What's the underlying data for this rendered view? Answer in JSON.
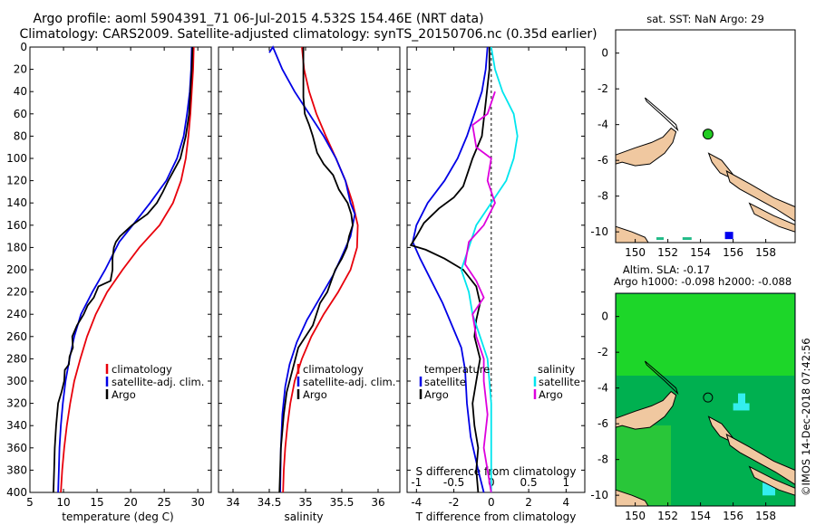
{
  "title": {
    "line1": "Argo profile: aoml 5904391_71 06-Jul-2015 4.532S 154.46E (NRT data)",
    "line2": "Climatology: CARS2009. Satellite-adjusted climatology: synTS_20150706.nc (0.35d earlier)"
  },
  "credit": "©IMOS 14-Dec-2018 07:42:56",
  "colors": {
    "climatology": "#e8000b",
    "satellite": "#0000e6",
    "argo": "#000000",
    "s_satellite": "#00e5ee",
    "s_argo": "#dd00dd",
    "land": "#f0c8a0",
    "sla_bg": "#00b050",
    "sla_high": "#22dd22"
  },
  "chart_data": [
    {
      "type": "line",
      "name": "temperature-panel",
      "xlabel": "temperature (deg C)",
      "ylabel": "",
      "xlim": [
        5,
        32
      ],
      "ylim": [
        400,
        0
      ],
      "xticks": [
        "5",
        "10",
        "15",
        "20",
        "25",
        "30"
      ],
      "yticks": [
        "0",
        "20",
        "40",
        "60",
        "80",
        "100",
        "120",
        "140",
        "160",
        "180",
        "200",
        "220",
        "240",
        "260",
        "280",
        "300",
        "320",
        "340",
        "360",
        "380",
        "400"
      ],
      "legend": [
        "climatology",
        "satellite-adj. clim.",
        "Argo"
      ],
      "series": [
        {
          "name": "climatology",
          "key": "climatology",
          "points": [
            [
              29.4,
              0
            ],
            [
              29.3,
              20
            ],
            [
              29.1,
              40
            ],
            [
              28.9,
              60
            ],
            [
              28.6,
              80
            ],
            [
              28.2,
              100
            ],
            [
              27.5,
              120
            ],
            [
              26.3,
              140
            ],
            [
              24.3,
              160
            ],
            [
              21.3,
              180
            ],
            [
              18.8,
              200
            ],
            [
              16.5,
              220
            ],
            [
              14.8,
              240
            ],
            [
              13.5,
              260
            ],
            [
              12.5,
              280
            ],
            [
              11.6,
              300
            ],
            [
              11.0,
              320
            ],
            [
              10.5,
              340
            ],
            [
              10.1,
              360
            ],
            [
              9.8,
              380
            ],
            [
              9.6,
              400
            ]
          ]
        },
        {
          "name": "satellite-adj. clim.",
          "key": "satellite",
          "points": [
            [
              29.1,
              0
            ],
            [
              29.0,
              20
            ],
            [
              28.8,
              40
            ],
            [
              28.4,
              60
            ],
            [
              27.9,
              80
            ],
            [
              26.9,
              100
            ],
            [
              25.3,
              120
            ],
            [
              22.9,
              140
            ],
            [
              20.3,
              160
            ],
            [
              18.3,
              175
            ],
            [
              16.2,
              200
            ],
            [
              14.3,
              220
            ],
            [
              12.6,
              240
            ],
            [
              11.6,
              260
            ],
            [
              10.9,
              280
            ],
            [
              10.3,
              300
            ],
            [
              9.9,
              320
            ],
            [
              9.6,
              340
            ],
            [
              9.4,
              360
            ],
            [
              9.3,
              380
            ],
            [
              9.2,
              400
            ]
          ]
        },
        {
          "name": "Argo",
          "key": "argo",
          "points": [
            [
              29.2,
              0
            ],
            [
              29.1,
              20
            ],
            [
              28.9,
              40
            ],
            [
              28.7,
              60
            ],
            [
              28.2,
              80
            ],
            [
              27.4,
              100
            ],
            [
              26.5,
              110
            ],
            [
              25.6,
              120
            ],
            [
              24.8,
              130
            ],
            [
              23.9,
              140
            ],
            [
              22.5,
              150
            ],
            [
              20.2,
              160
            ],
            [
              18.4,
              170
            ],
            [
              17.8,
              175
            ],
            [
              17.5,
              180
            ],
            [
              17.3,
              190
            ],
            [
              17.3,
              200
            ],
            [
              17.0,
              210
            ],
            [
              15.2,
              215
            ],
            [
              14.5,
              225
            ],
            [
              13.6,
              232
            ],
            [
              13.0,
              240
            ],
            [
              12.0,
              250
            ],
            [
              11.3,
              260
            ],
            [
              11.4,
              270
            ],
            [
              10.9,
              278
            ],
            [
              10.8,
              285
            ],
            [
              10.2,
              290
            ],
            [
              10.1,
              300
            ],
            [
              9.7,
              310
            ],
            [
              9.2,
              320
            ],
            [
              8.9,
              340
            ],
            [
              8.7,
              360
            ],
            [
              8.6,
              380
            ],
            [
              8.5,
              400
            ]
          ]
        }
      ]
    },
    {
      "type": "line",
      "name": "salinity-panel",
      "xlabel": "salinity",
      "xlim": [
        33.8,
        36.3
      ],
      "ylim": [
        400,
        0
      ],
      "xticks": [
        "34",
        "34.5",
        "35",
        "35.5",
        "36"
      ],
      "legend": [
        "climatology",
        "satellite-adj. clim.",
        "Argo"
      ],
      "series": [
        {
          "name": "climatology",
          "key": "climatology",
          "points": [
            [
              34.95,
              0
            ],
            [
              34.98,
              20
            ],
            [
              35.05,
              40
            ],
            [
              35.15,
              60
            ],
            [
              35.28,
              80
            ],
            [
              35.42,
              100
            ],
            [
              35.55,
              120
            ],
            [
              35.65,
              140
            ],
            [
              35.72,
              160
            ],
            [
              35.71,
              180
            ],
            [
              35.62,
              200
            ],
            [
              35.45,
              220
            ],
            [
              35.25,
              240
            ],
            [
              35.08,
              260
            ],
            [
              34.95,
              280
            ],
            [
              34.85,
              300
            ],
            [
              34.79,
              320
            ],
            [
              34.75,
              340
            ],
            [
              34.72,
              360
            ],
            [
              34.7,
              380
            ],
            [
              34.69,
              400
            ]
          ]
        },
        {
          "name": "satellite-adj. clim.",
          "key": "satellite",
          "points": [
            [
              34.5,
              5
            ],
            [
              34.55,
              0
            ],
            [
              34.68,
              20
            ],
            [
              34.85,
              40
            ],
            [
              35.05,
              60
            ],
            [
              35.25,
              80
            ],
            [
              35.42,
              100
            ],
            [
              35.55,
              120
            ],
            [
              35.62,
              140
            ],
            [
              35.68,
              150
            ],
            [
              35.62,
              170
            ],
            [
              35.52,
              185
            ],
            [
              35.38,
              205
            ],
            [
              35.2,
              225
            ],
            [
              35.02,
              245
            ],
            [
              34.88,
              265
            ],
            [
              34.78,
              285
            ],
            [
              34.72,
              305
            ],
            [
              34.68,
              330
            ],
            [
              34.66,
              360
            ],
            [
              34.65,
              400
            ]
          ]
        },
        {
          "name": "Argo",
          "key": "argo",
          "points": [
            [
              34.97,
              0
            ],
            [
              34.97,
              20
            ],
            [
              34.97,
              45
            ],
            [
              34.99,
              60
            ],
            [
              35.05,
              70
            ],
            [
              35.1,
              80
            ],
            [
              35.16,
              95
            ],
            [
              35.25,
              105
            ],
            [
              35.38,
              115
            ],
            [
              35.46,
              128
            ],
            [
              35.58,
              140
            ],
            [
              35.63,
              150
            ],
            [
              35.65,
              160
            ],
            [
              35.6,
              170
            ],
            [
              35.57,
              180
            ],
            [
              35.5,
              190
            ],
            [
              35.41,
              200
            ],
            [
              35.3,
              220
            ],
            [
              35.2,
              230
            ],
            [
              35.1,
              250
            ],
            [
              34.9,
              270
            ],
            [
              34.82,
              290
            ],
            [
              34.74,
              310
            ],
            [
              34.7,
              330
            ],
            [
              34.66,
              360
            ],
            [
              34.64,
              400
            ]
          ]
        }
      ]
    },
    {
      "type": "line",
      "name": "difference-panel",
      "xlabel": "T difference from climatology",
      "xlabel_top": "S difference from climatology",
      "xlim": [
        -4.5,
        5
      ],
      "ylim": [
        400,
        0
      ],
      "xticks_T": [
        "-4",
        "-2",
        "0",
        "2",
        "4"
      ],
      "xticks_S": [
        "-1",
        "-0.5",
        "0",
        "0.5",
        "1"
      ],
      "legend_T": {
        "header": "temperature",
        "items": [
          "satellite",
          "Argo"
        ]
      },
      "legend_S": {
        "header": "salinity",
        "items": [
          "satellite",
          "Argo"
        ]
      },
      "series": [
        {
          "name": "T satellite",
          "key": "satellite",
          "points": [
            [
              -0.2,
              0
            ],
            [
              -0.3,
              20
            ],
            [
              -0.5,
              40
            ],
            [
              -0.9,
              60
            ],
            [
              -1.3,
              80
            ],
            [
              -1.8,
              100
            ],
            [
              -2.5,
              120
            ],
            [
              -3.4,
              140
            ],
            [
              -4.0,
              160
            ],
            [
              -4.2,
              175
            ],
            [
              -3.8,
              190
            ],
            [
              -3.2,
              210
            ],
            [
              -2.6,
              230
            ],
            [
              -2.1,
              250
            ],
            [
              -1.6,
              270
            ],
            [
              -1.4,
              290
            ],
            [
              -1.3,
              320
            ],
            [
              -1.1,
              350
            ],
            [
              -0.7,
              380
            ],
            [
              -0.4,
              400
            ]
          ]
        },
        {
          "name": "T Argo",
          "key": "argo",
          "points": [
            [
              -0.1,
              0
            ],
            [
              -0.1,
              20
            ],
            [
              -0.3,
              50
            ],
            [
              -0.5,
              80
            ],
            [
              -1.0,
              100
            ],
            [
              -1.2,
              110
            ],
            [
              -1.5,
              125
            ],
            [
              -2.0,
              135
            ],
            [
              -2.8,
              145
            ],
            [
              -3.6,
              158
            ],
            [
              -4.0,
              170
            ],
            [
              -4.3,
              178
            ],
            [
              -3.5,
              182
            ],
            [
              -2.5,
              190
            ],
            [
              -1.5,
              200
            ],
            [
              -0.8,
              215
            ],
            [
              -0.6,
              230
            ],
            [
              -0.8,
              245
            ],
            [
              -0.9,
              260
            ],
            [
              -0.6,
              280
            ],
            [
              -0.8,
              300
            ],
            [
              -1.0,
              320
            ],
            [
              -0.9,
              340
            ],
            [
              -0.7,
              360
            ],
            [
              -0.8,
              380
            ],
            [
              -0.7,
              400
            ]
          ]
        },
        {
          "name": "S satellite",
          "key": "s_satellite",
          "points": [
            [
              0.0,
              0
            ],
            [
              0.05,
              20
            ],
            [
              0.15,
              40
            ],
            [
              0.3,
              60
            ],
            [
              0.35,
              80
            ],
            [
              0.3,
              100
            ],
            [
              0.2,
              120
            ],
            [
              0.0,
              140
            ],
            [
              -0.2,
              160
            ],
            [
              -0.3,
              180
            ],
            [
              -0.4,
              200
            ],
            [
              -0.3,
              220
            ],
            [
              -0.25,
              240
            ],
            [
              -0.15,
              260
            ],
            [
              -0.05,
              280
            ],
            [
              0.0,
              320
            ],
            [
              0.0,
              360
            ],
            [
              0.0,
              400
            ]
          ]
        },
        {
          "name": "S Argo",
          "key": "s_argo",
          "points": [
            [
              0.05,
              40
            ],
            [
              -0.05,
              60
            ],
            [
              -0.25,
              70
            ],
            [
              -0.2,
              90
            ],
            [
              0.0,
              100
            ],
            [
              -0.05,
              120
            ],
            [
              0.05,
              140
            ],
            [
              -0.1,
              160
            ],
            [
              -0.3,
              175
            ],
            [
              -0.35,
              195
            ],
            [
              -0.2,
              210
            ],
            [
              -0.1,
              225
            ],
            [
              -0.25,
              240
            ],
            [
              -0.2,
              260
            ],
            [
              -0.1,
              280
            ],
            [
              -0.1,
              300
            ],
            [
              -0.05,
              330
            ],
            [
              -0.1,
              360
            ],
            [
              0.0,
              400
            ]
          ]
        }
      ]
    },
    {
      "type": "map",
      "name": "sst-map",
      "title": "sat. SST: NaN Argo: 29",
      "xticks": [
        "150",
        "152",
        "154",
        "156",
        "158"
      ],
      "yticks": [
        "0",
        "-2",
        "-4",
        "-6",
        "-8",
        "-10"
      ],
      "argo_position": {
        "lon": 154.46,
        "lat": -4.532
      }
    },
    {
      "type": "map",
      "name": "sla-map",
      "title1": "Altim. SLA: -0.17",
      "title2": "Argo h1000: -0.098 h2000: -0.088",
      "xticks": [
        "150",
        "152",
        "154",
        "156",
        "158"
      ],
      "yticks": [
        "0",
        "-2",
        "-4",
        "-6",
        "-8",
        "-10"
      ],
      "argo_position": {
        "lon": 154.46,
        "lat": -4.532
      }
    }
  ]
}
